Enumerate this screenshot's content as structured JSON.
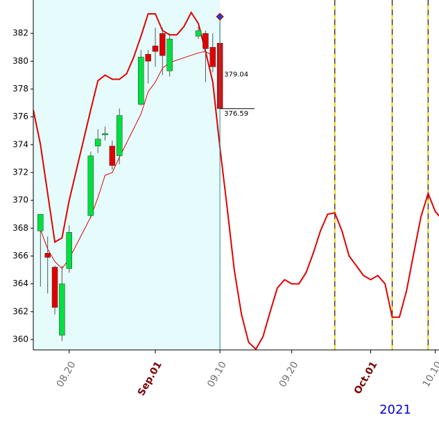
{
  "chart_data": {
    "type": "candlestick",
    "xlim": [
      "08.15",
      "10.11"
    ],
    "ylim": [
      359.25,
      383.9
    ],
    "yticks": [
      360,
      362,
      364,
      366,
      368,
      370,
      372,
      374,
      376,
      378,
      380,
      382
    ],
    "xticks": [
      "08.20",
      {
        "value": "09.01",
        "label": "Sep.01"
      },
      "09.10",
      "09.20",
      {
        "value": "10.01",
        "label": "Oct.01"
      },
      "10.10"
    ],
    "year_label": "2021",
    "up_color": "#00e040",
    "down_color": "#e00000",
    "history_background": "#e6fbfb",
    "cursor": "09.10",
    "cursor_color": "#2a8a8a",
    "marker_value": 383.2,
    "candles": {
      "x": [
        "08.16",
        "08.17",
        "08.18",
        "08.19",
        "08.20",
        "08.23",
        "08.24",
        "08.25",
        "08.26",
        "08.27",
        "08.30",
        "08.31",
        "09.01",
        "09.02",
        "09.03",
        "09.07",
        "09.08",
        "09.09",
        "09.10"
      ],
      "open": [
        367.8,
        366.2,
        365.2,
        360.3,
        365.1,
        368.9,
        373.9,
        374.7,
        373.9,
        373.2,
        376.9,
        380.5,
        381.1,
        382.0,
        379.3,
        381.8,
        382.0,
        381.0,
        381.3
      ],
      "high": [
        369.0,
        367.4,
        365.3,
        365.3,
        368.2,
        373.5,
        375.1,
        375.3,
        374.3,
        376.6,
        380.8,
        380.8,
        382.4,
        382.4,
        382.0,
        382.5,
        382.2,
        382.0,
        383.2
      ],
      "low": [
        363.8,
        363.3,
        361.8,
        359.9,
        364.8,
        368.7,
        373.4,
        374.3,
        372.2,
        372.6,
        376.8,
        378.4,
        379.6,
        379.0,
        378.9,
        381.6,
        378.5,
        379.2,
        376.59
      ],
      "close": [
        369.0,
        365.9,
        362.3,
        364.0,
        367.7,
        373.2,
        374.4,
        374.8,
        372.5,
        376.1,
        380.3,
        380.0,
        380.7,
        380.4,
        381.6,
        382.2,
        380.9,
        379.6,
        376.59
      ]
    },
    "annotations": [
      {
        "value": 379.04,
        "label": "379.04"
      },
      {
        "value": 376.59,
        "label": "376.59"
      }
    ],
    "lines": [
      {
        "color": "#e00000",
        "width": 2,
        "x": [
          "08.15",
          "08.16",
          "08.17",
          "08.18",
          "08.19",
          "08.20",
          "08.23",
          "08.24",
          "08.25",
          "08.26",
          "08.27",
          "08.28",
          "08.29",
          "08.30",
          "08.31",
          "09.01",
          "09.02",
          "09.03",
          "09.04",
          "09.05",
          "09.06",
          "09.07",
          "09.08",
          "09.09",
          "09.10",
          "09.11",
          "09.12",
          "09.13",
          "09.14",
          "09.15",
          "09.16",
          "09.17",
          "09.18",
          "09.19",
          "09.20",
          "09.21",
          "09.22",
          "09.23",
          "09.24",
          "09.25",
          "09.26",
          "09.27",
          "09.28",
          "09.29",
          "09.30",
          "10.01",
          "10.02",
          "10.03",
          "10.04",
          "10.05",
          "10.06",
          "10.07",
          "10.08",
          "10.09",
          "10.10",
          "10.11"
        ],
        "values": [
          376.5,
          374.0,
          370.5,
          367.0,
          367.3,
          370.0,
          376.5,
          378.6,
          379.0,
          378.7,
          378.7,
          379.1,
          380.3,
          381.8,
          383.4,
          383.4,
          382.2,
          381.9,
          381.9,
          382.5,
          383.5,
          382.7,
          380.7,
          378.5,
          373.8,
          369.5,
          365.0,
          361.8,
          359.8,
          359.3,
          360.2,
          362.0,
          363.7,
          364.3,
          364.0,
          364.0,
          364.8,
          366.2,
          367.8,
          369.0,
          369.1,
          367.8,
          366.0,
          365.3,
          364.6,
          364.3,
          364.6,
          364.0,
          361.6,
          361.6,
          363.5,
          366.2,
          368.8,
          370.5,
          369.2,
          368.6
        ]
      },
      {
        "color": "#e00000",
        "width": 1,
        "x": [
          "08.16",
          "08.17",
          "08.18",
          "08.19",
          "08.20",
          "08.23",
          "08.24",
          "08.25",
          "08.26",
          "08.27",
          "08.30",
          "08.31",
          "09.01",
          "09.02",
          "09.03",
          "09.07",
          "09.08",
          "09.09"
        ],
        "values": [
          367.9,
          366.5,
          365.6,
          365.1,
          365.8,
          368.8,
          370.2,
          371.8,
          372.0,
          373.1,
          376.2,
          377.8,
          378.5,
          379.5,
          379.9,
          380.6,
          380.7,
          380.4
        ]
      }
    ],
    "vlines": [
      "09.26",
      "10.04",
      "10.09"
    ]
  }
}
